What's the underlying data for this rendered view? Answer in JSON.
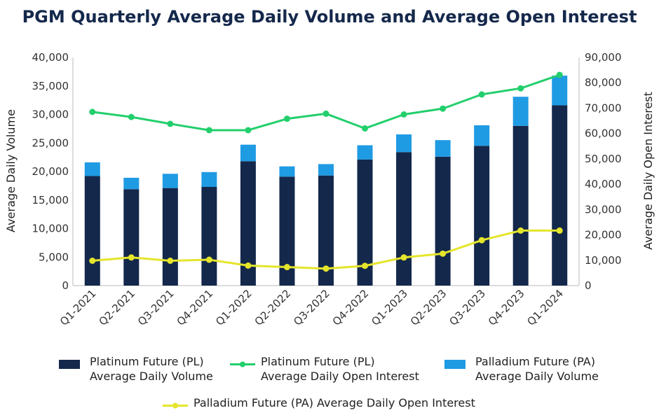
{
  "chart_data": {
    "type": "bar",
    "title": "PGM Quarterly Average Daily Volume and Average Open Interest",
    "categories": [
      "Q1-2021",
      "Q2-2021",
      "Q3-2021",
      "Q4-2021",
      "Q1-2022",
      "Q2-2022",
      "Q3-2022",
      "Q4-2022",
      "Q1-2023",
      "Q2-2023",
      "Q3-2023",
      "Q4-2023",
      "Q1-2024"
    ],
    "ylabel": "Average Daily Volume",
    "y2label": "Average Daily Open Interest",
    "ylim": [
      0,
      40000
    ],
    "y2lim": [
      0,
      90000
    ],
    "yticks": [
      "0",
      "5,000",
      "10,000",
      "15,000",
      "20,000",
      "25,000",
      "30,000",
      "35,000",
      "40,000"
    ],
    "y2ticks": [
      "0",
      "10,000",
      "20,000",
      "30,000",
      "40,000",
      "50,000",
      "60,000",
      "70,000",
      "80,000",
      "90,000"
    ],
    "stacked": true,
    "series": [
      {
        "name": "Platinum Future (PL) Average Daily Volume",
        "kind": "bar",
        "axis": "left",
        "color": "#14284b",
        "values": [
          19200,
          16900,
          17100,
          17300,
          21800,
          19100,
          19300,
          22100,
          23400,
          22600,
          24500,
          28000,
          31600
        ]
      },
      {
        "name": "Palladium Future (PA) Average Daily Volume",
        "kind": "bar",
        "axis": "left",
        "color": "#1f9be3",
        "values": [
          2400,
          2000,
          2500,
          2600,
          2900,
          1800,
          2000,
          2500,
          3100,
          2900,
          3600,
          5100,
          5200
        ]
      },
      {
        "name": "Platinum Future (PL) Average Daily Open Interest",
        "kind": "line",
        "axis": "right",
        "color": "#22cf6c",
        "values": [
          68500,
          66500,
          63800,
          61300,
          61300,
          65800,
          67800,
          62000,
          67500,
          69800,
          75400,
          77800,
          83100
        ]
      },
      {
        "name": "Palladium Future (PA) Average Daily Open Interest",
        "kind": "line",
        "axis": "right",
        "color": "#e5e52b",
        "values": [
          9800,
          11100,
          9800,
          10200,
          7900,
          7300,
          6700,
          7800,
          11100,
          12600,
          17900,
          21700,
          21700
        ]
      }
    ],
    "legend_position": "bottom"
  }
}
